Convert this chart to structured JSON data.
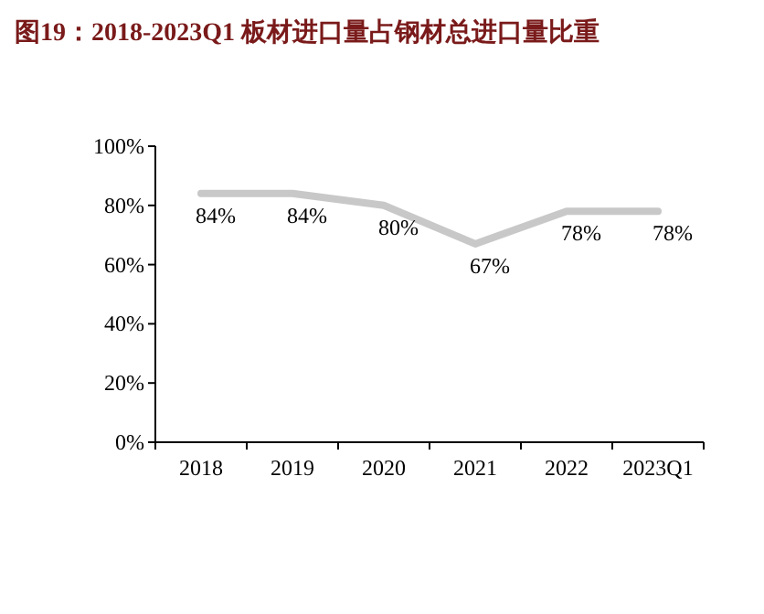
{
  "chart_data": {
    "type": "line",
    "title": "图19：2018-2023Q1 板材进口量占钢材总进口量比重",
    "categories": [
      "2018",
      "2019",
      "2020",
      "2021",
      "2022",
      "2023Q1"
    ],
    "values": [
      84,
      84,
      80,
      67,
      78,
      78
    ],
    "color": "#c8c8c8",
    "ylim": [
      0,
      100
    ],
    "yticks": [
      {
        "value": 0,
        "label": "0%"
      },
      {
        "value": 20,
        "label": "20%"
      },
      {
        "value": 40,
        "label": "40%"
      },
      {
        "value": 60,
        "label": "60%"
      },
      {
        "value": 80,
        "label": "80%"
      },
      {
        "value": 100,
        "label": "100%"
      }
    ],
    "value_labels": [
      "84%",
      "84%",
      "80%",
      "67%",
      "78%",
      "78%"
    ]
  }
}
